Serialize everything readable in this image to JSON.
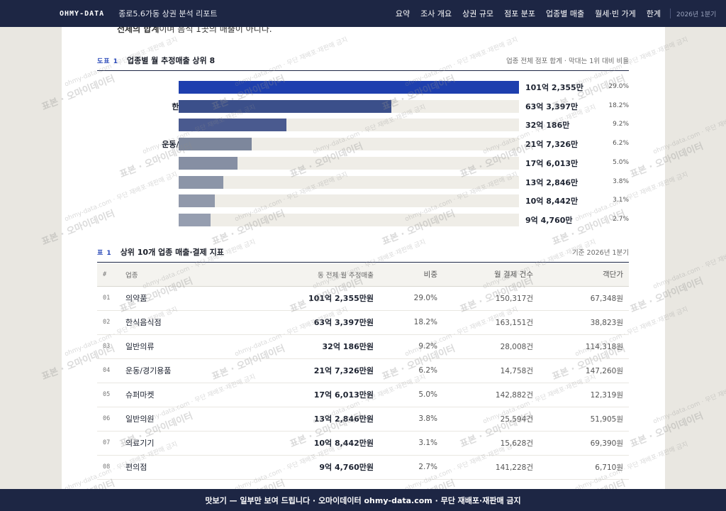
{
  "nav": {
    "brand": "OHMY-DATA",
    "report_title": "종로5.6가동 상권 분석 리포트",
    "items": [
      "요약",
      "조사 개요",
      "상권 규모",
      "점포 분포",
      "업종별 매출",
      "월세·빈 가게",
      "한계"
    ],
    "period": "2026년 1분기"
  },
  "intro": {
    "bold": "전체의 합계",
    "text": "이며 음식 1곳의 매출이 아니다."
  },
  "figure": {
    "tag": "도표 1",
    "title": "업종별 월 추정매출 상위 8",
    "note": "업종 전체 점포 합계 · 막대는 1위 대비 비율"
  },
  "chart_data": {
    "type": "bar",
    "orientation": "horizontal",
    "categories": [
      "의약품",
      "한식음식점",
      "일반의류",
      "운동/경기용품",
      "슈퍼마켓",
      "일반의원",
      "의료기기",
      "편의점"
    ],
    "value_labels": [
      "101억 2,355만",
      "63억 3,397만",
      "32억 186만",
      "21억 7,326만",
      "17억 6,013만",
      "13억 2,846만",
      "10억 8,442만",
      "9억 4,760만"
    ],
    "values": [
      10123550000,
      6333970000,
      3201860000,
      2173260000,
      1760130000,
      1328460000,
      1084420000,
      947600000
    ],
    "shares": [
      "29.0%",
      "18.2%",
      "9.2%",
      "6.2%",
      "5.0%",
      "3.8%",
      "3.1%",
      "2.7%"
    ],
    "colors": [
      "#1e3fae",
      "#3b4f8a",
      "#4a5a8f",
      "#7d879c",
      "#868fa3",
      "#8c95a8",
      "#9199ab",
      "#969eb0"
    ],
    "track_color": "#efede7"
  },
  "table": {
    "tag": "표 1",
    "title": "상위 10개 업종 매출·결제 지표",
    "note": "기준 2026년 1분기",
    "columns": [
      "#",
      "업종",
      "동 전체 월 추정매출",
      "비중",
      "월 결제 건수",
      "객단가"
    ],
    "rows": [
      {
        "idx": "01",
        "name": "의약품",
        "sales": "101억 2,355만원",
        "share": "29.0%",
        "count": "150,317건",
        "avg": "67,348원"
      },
      {
        "idx": "02",
        "name": "한식음식점",
        "sales": "63억 3,397만원",
        "share": "18.2%",
        "count": "163,151건",
        "avg": "38,823원"
      },
      {
        "idx": "03",
        "name": "일반의류",
        "sales": "32억 186만원",
        "share": "9.2%",
        "count": "28,008건",
        "avg": "114,318원"
      },
      {
        "idx": "04",
        "name": "운동/경기용품",
        "sales": "21억 7,326만원",
        "share": "6.2%",
        "count": "14,758건",
        "avg": "147,260원"
      },
      {
        "idx": "05",
        "name": "슈퍼마켓",
        "sales": "17억 6,013만원",
        "share": "5.0%",
        "count": "142,882건",
        "avg": "12,319원"
      },
      {
        "idx": "06",
        "name": "일반의원",
        "sales": "13억 2,846만원",
        "share": "3.8%",
        "count": "25,594건",
        "avg": "51,905원"
      },
      {
        "idx": "07",
        "name": "의료기기",
        "sales": "10억 8,442만원",
        "share": "3.1%",
        "count": "15,628건",
        "avg": "69,390원"
      },
      {
        "idx": "08",
        "name": "편의점",
        "sales": "9억 4,760만원",
        "share": "2.7%",
        "count": "141,228건",
        "avg": "6,710원"
      }
    ]
  },
  "watermark": {
    "main": "표본 · 오마이데이터",
    "sub": "ohmy-data.com · 무단 재배포·재판매 금지"
  },
  "banner": "맛보기 — 일부만 보여 드립니다 · 오마이데이터 ohmy-data.com · 무단 재배포·재판매 금지"
}
